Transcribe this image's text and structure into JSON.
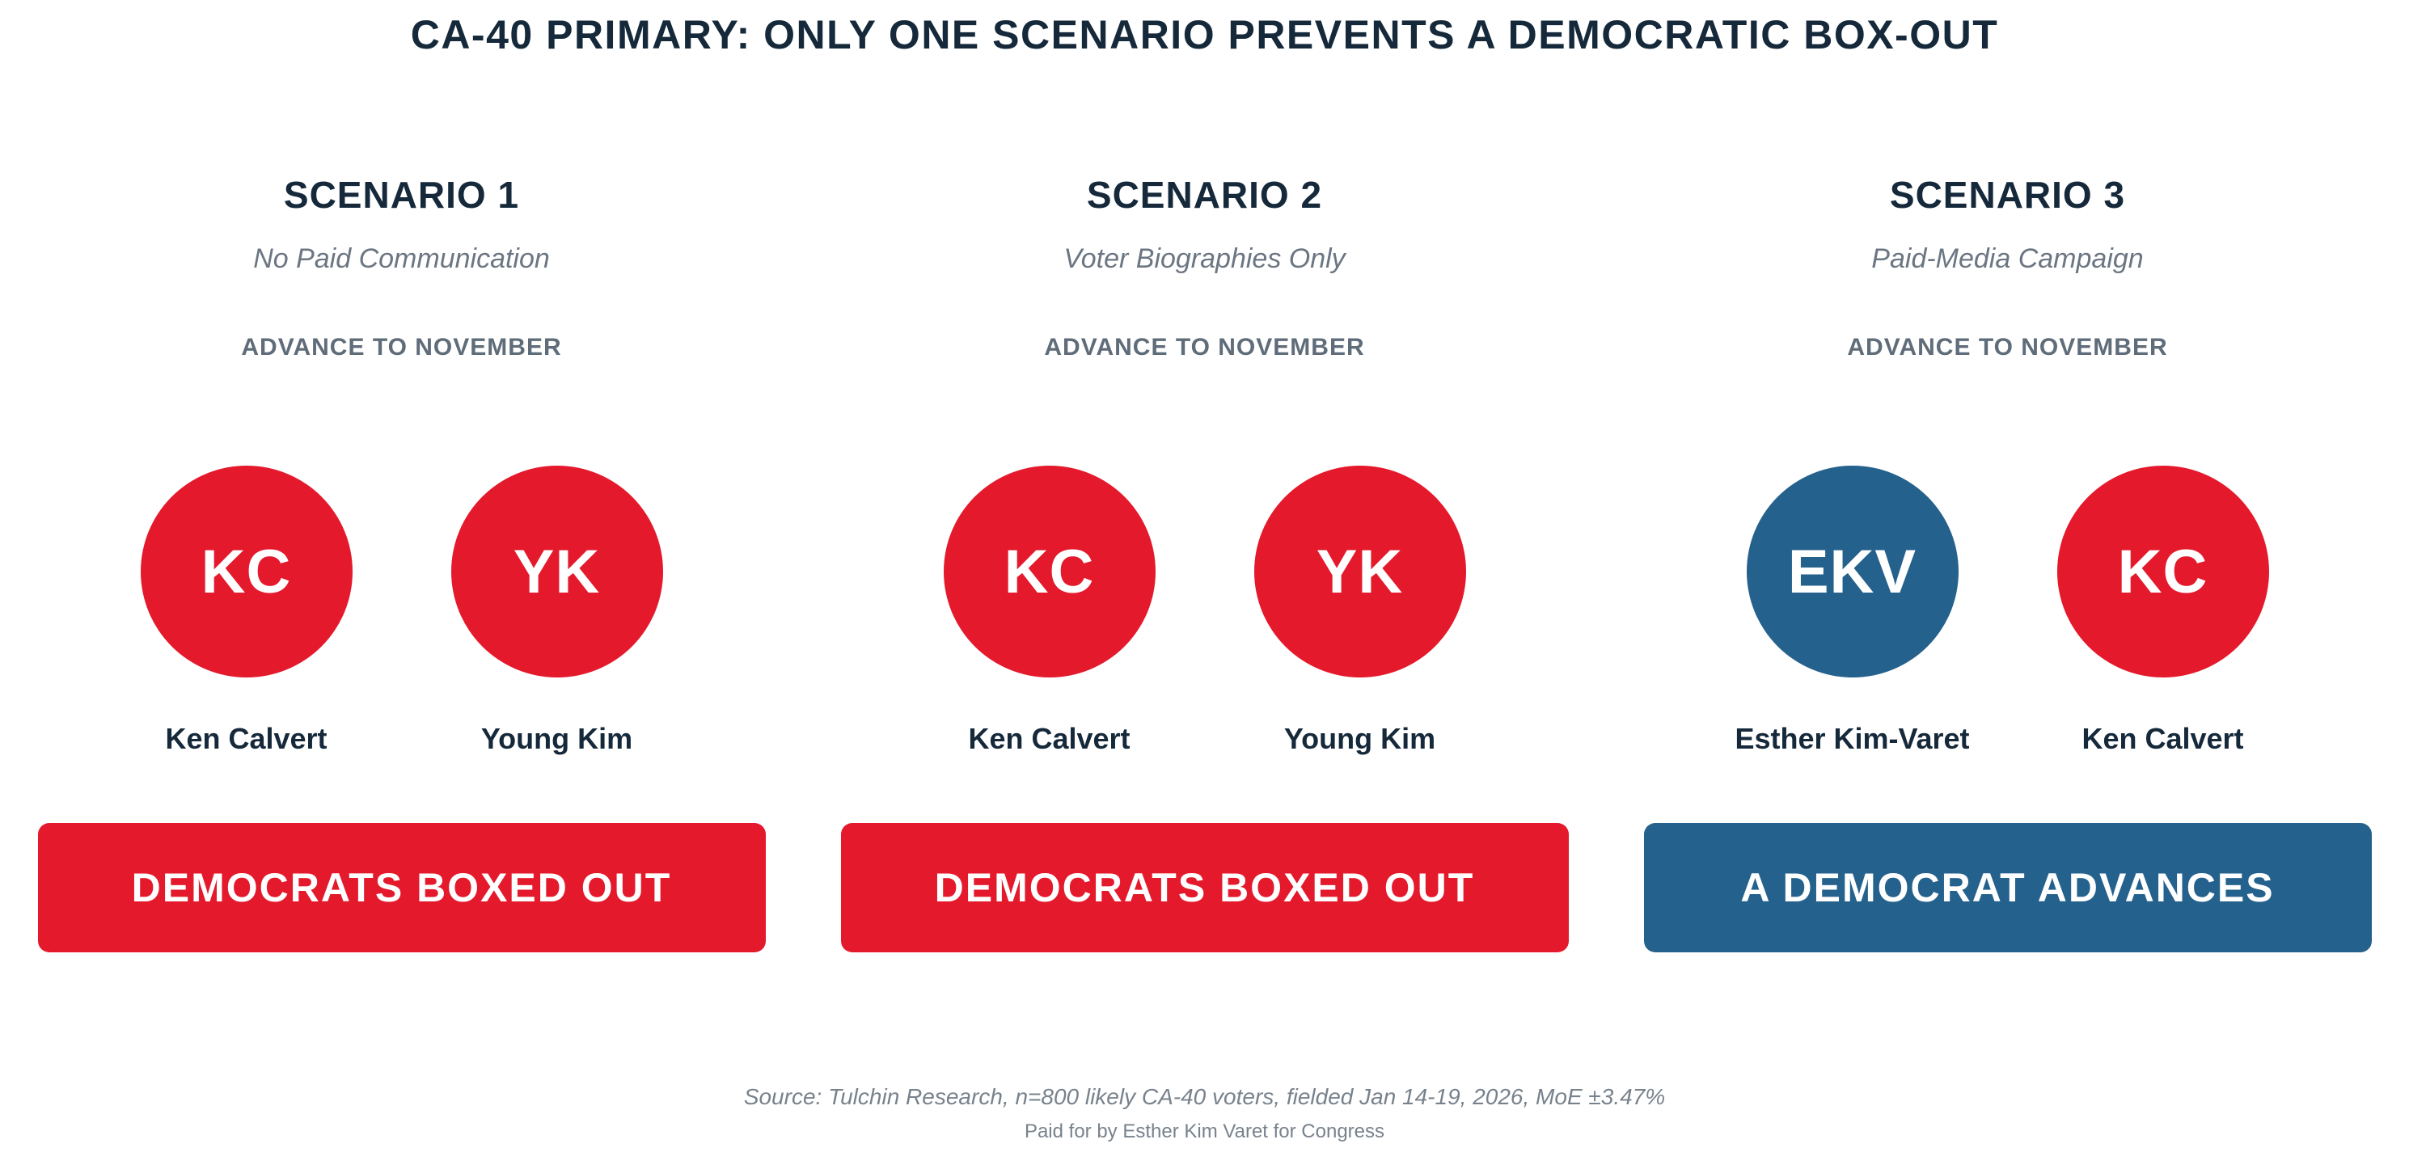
{
  "title": "CA-40 PRIMARY: ONLY ONE SCENARIO PREVENTS A DEMOCRATIC BOX-OUT",
  "colors": {
    "navy": "#15293b",
    "gray": "#6b7682",
    "republican_red": "#e4192c",
    "democrat_blue": "#24618c"
  },
  "scenarios": [
    {
      "name": "SCENARIO 1",
      "subtitle": "No Paid Communication",
      "advance_label": "ADVANCE TO NOVEMBER",
      "candidates": [
        {
          "initials": "KC",
          "name": "Ken Calvert",
          "color": "#e4192c"
        },
        {
          "initials": "YK",
          "name": "Young Kim",
          "color": "#e4192c"
        }
      ],
      "outcome": {
        "label": "DEMOCRATS BOXED OUT",
        "color": "#e4192c"
      }
    },
    {
      "name": "SCENARIO 2",
      "subtitle": "Voter Biographies Only",
      "advance_label": "ADVANCE TO NOVEMBER",
      "candidates": [
        {
          "initials": "KC",
          "name": "Ken Calvert",
          "color": "#e4192c"
        },
        {
          "initials": "YK",
          "name": "Young Kim",
          "color": "#e4192c"
        }
      ],
      "outcome": {
        "label": "DEMOCRATS BOXED OUT",
        "color": "#e4192c"
      }
    },
    {
      "name": "SCENARIO 3",
      "subtitle": "Paid-Media Campaign",
      "advance_label": "ADVANCE TO NOVEMBER",
      "candidates": [
        {
          "initials": "EKV",
          "name": "Esther Kim-Varet",
          "color": "#24618c"
        },
        {
          "initials": "KC",
          "name": "Ken Calvert",
          "color": "#e4192c"
        }
      ],
      "outcome": {
        "label": "A DEMOCRAT ADVANCES",
        "color": "#24618c"
      }
    }
  ],
  "footer": {
    "source": "Source: Tulchin Research, n=800 likely CA-40 voters, fielded Jan 14-19, 2026, MoE ±3.47%",
    "paid_for": "Paid for by Esther Kim Varet for Congress"
  }
}
